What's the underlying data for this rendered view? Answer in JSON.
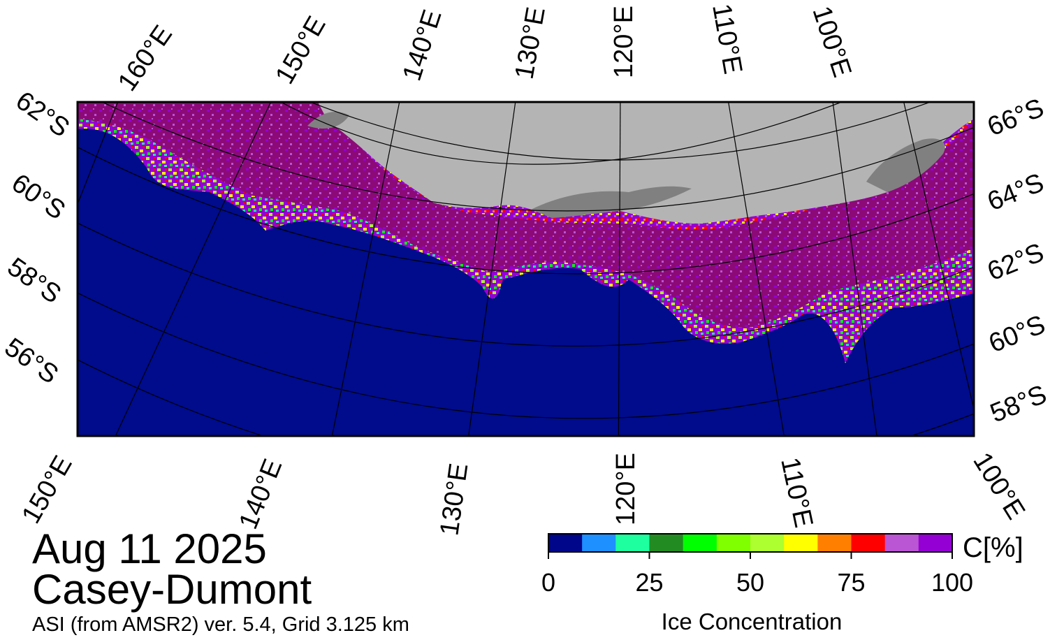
{
  "map": {
    "colors": {
      "ocean": "#000c8c",
      "land": "#b4b4b4",
      "shelf": "#808080",
      "high_ice": "#8c0a78",
      "grid": "#000000"
    },
    "top_lon_labels": [
      "160°E",
      "150°E",
      "140°E",
      "130°E",
      "120°E",
      "110°E",
      "100°E"
    ],
    "bottom_lon_labels": [
      "150°E",
      "140°E",
      "130°E",
      "120°E",
      "110°E",
      "100°E"
    ],
    "left_lat_labels": [
      "62°S",
      "60°S",
      "58°S",
      "56°S"
    ],
    "right_lat_labels": [
      "66°S",
      "64°S",
      "62°S",
      "60°S",
      "58°S"
    ]
  },
  "info": {
    "date": "Aug 11 2025",
    "region": "Casey-Dumont",
    "product": "ASI (from AMSR2) ver. 5.4,  Grid 3.125 km"
  },
  "colorbar": {
    "colors": [
      "#00068a",
      "#1e90ff",
      "#1effa0",
      "#228b22",
      "#00ff00",
      "#7fff00",
      "#adff2f",
      "#ffff00",
      "#ff7f00",
      "#ff0000",
      "#ba55d3",
      "#9400d3"
    ],
    "ticks": [
      "0",
      "25",
      "50",
      "75",
      "100"
    ],
    "unit": "C[%]",
    "title": "Ice Concentration"
  }
}
